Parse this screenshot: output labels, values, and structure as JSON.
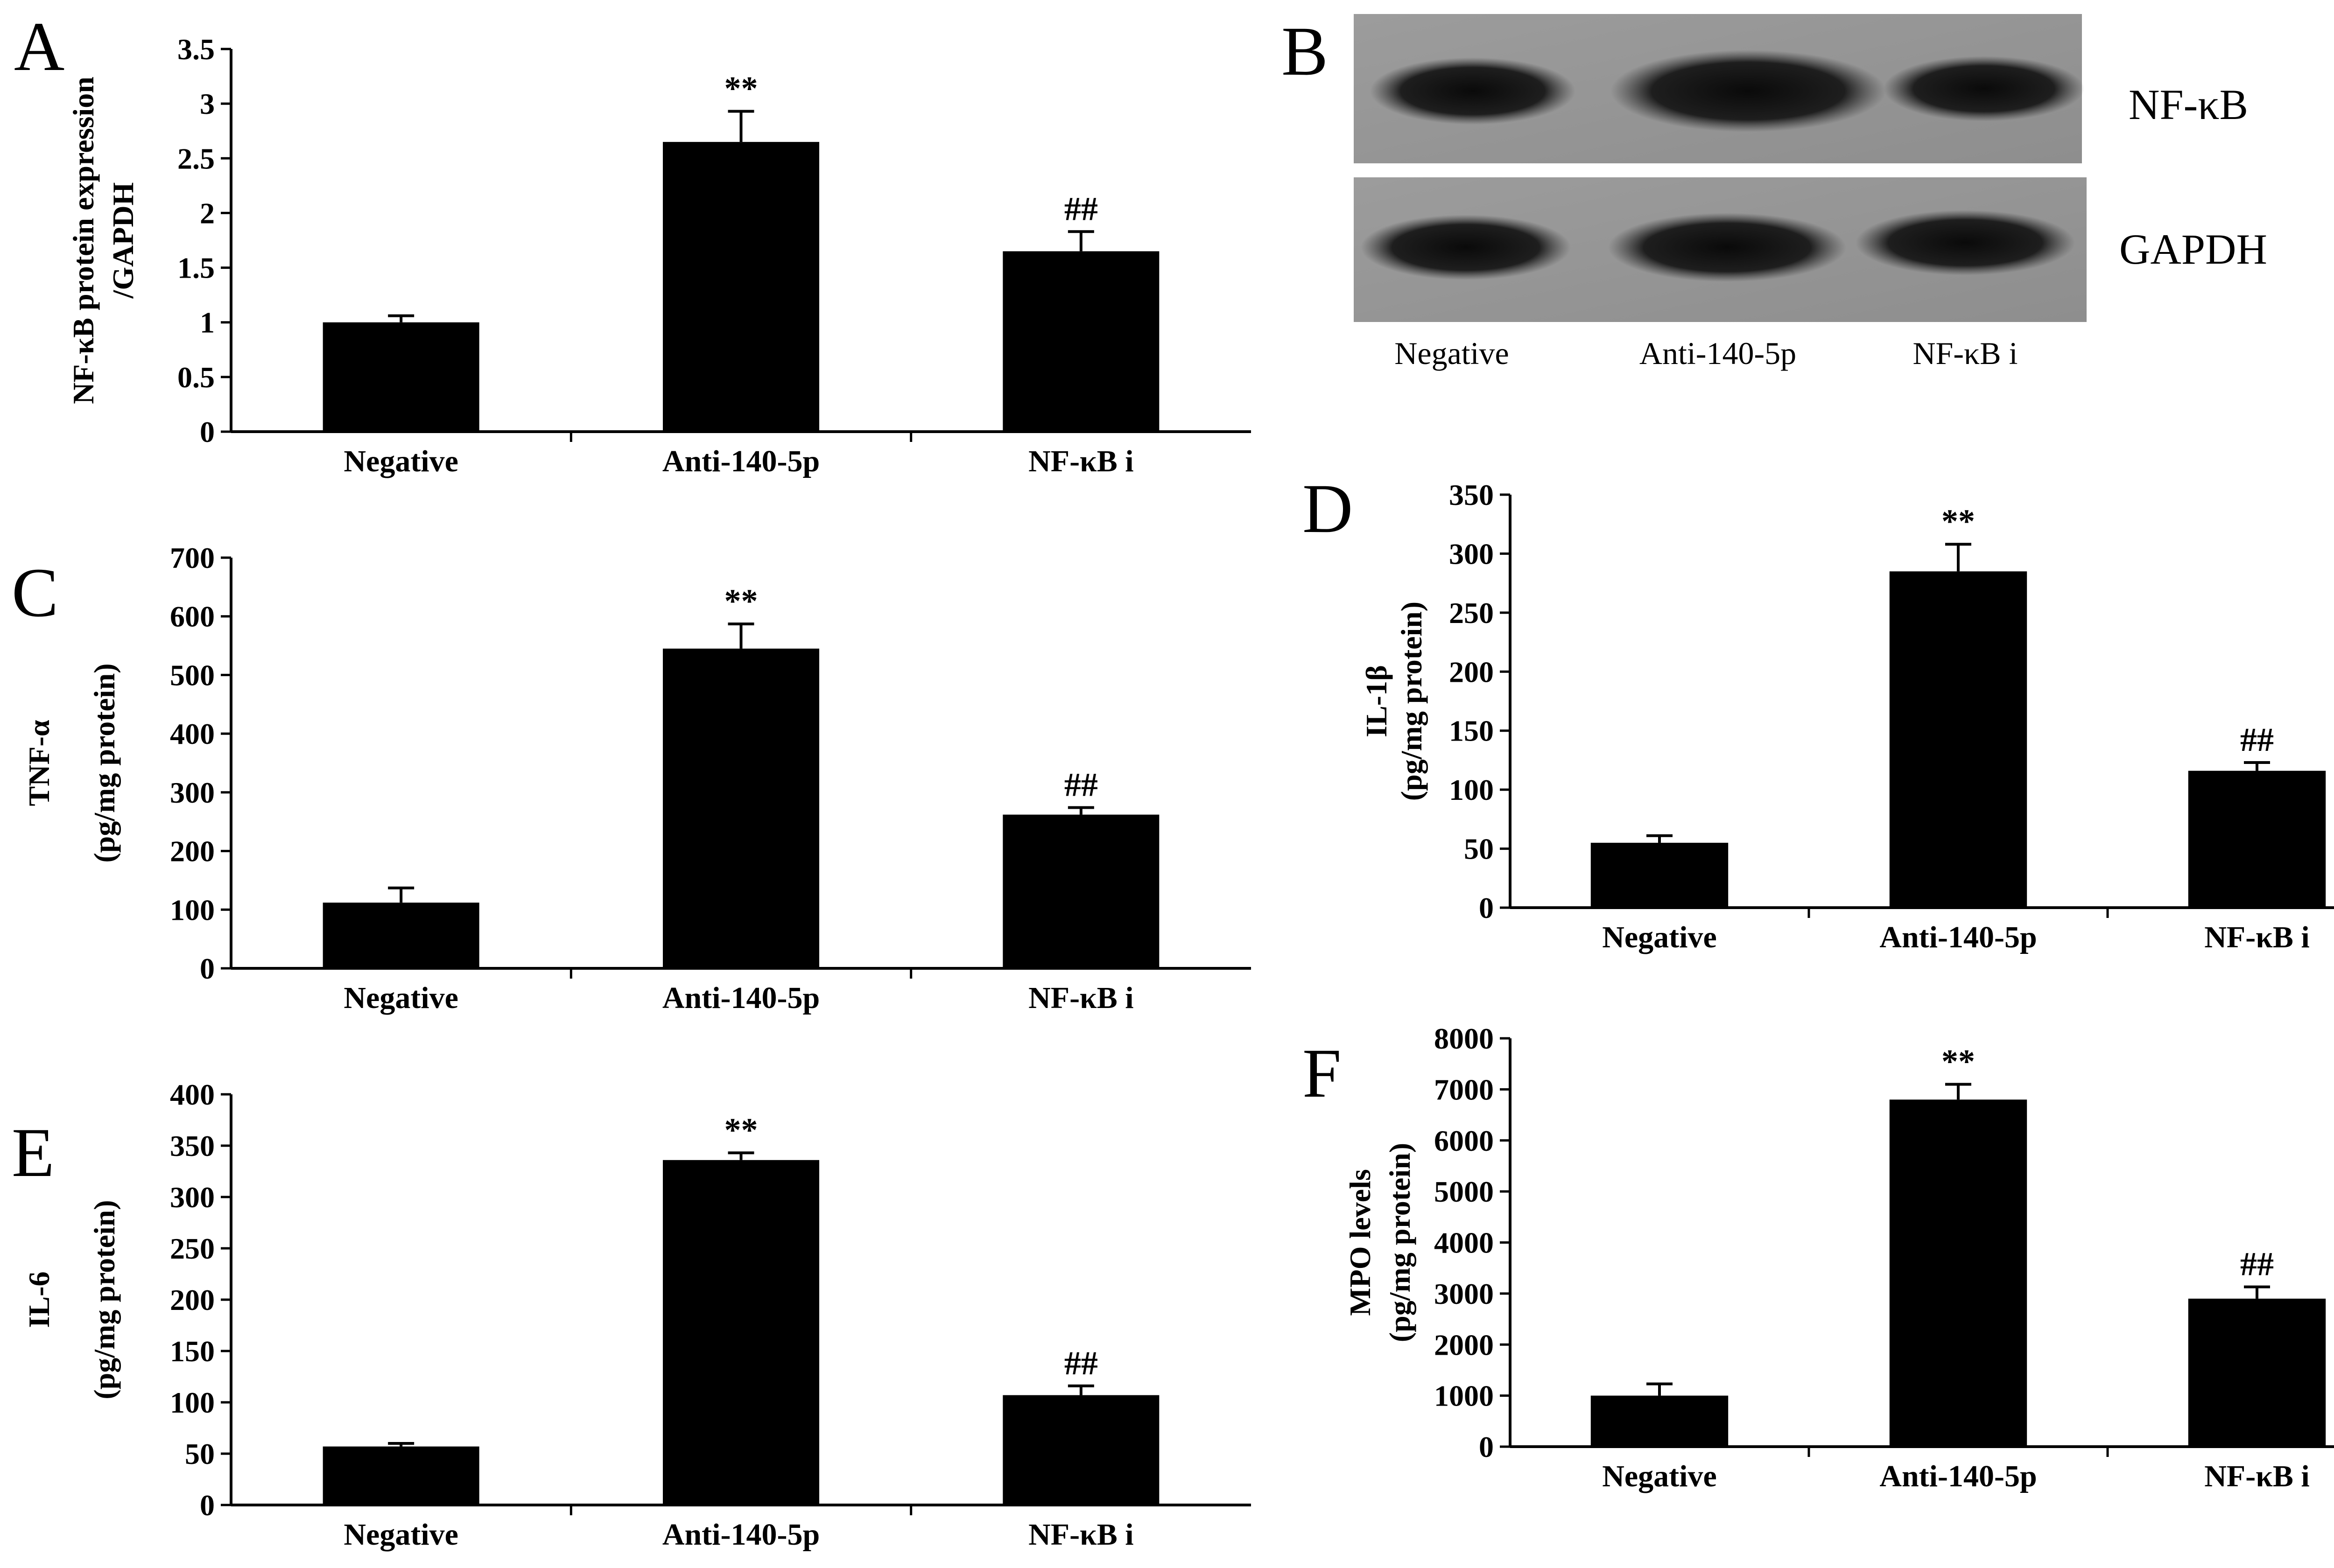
{
  "panels": [
    {
      "letter": "A"
    },
    {
      "letter": "B"
    },
    {
      "letter": "C"
    },
    {
      "letter": "D"
    },
    {
      "letter": "E"
    },
    {
      "letter": "F"
    }
  ],
  "blot": {
    "panel_letter": "B",
    "rows": [
      "NF-κB",
      "GAPDH"
    ],
    "lanes": [
      "Negative",
      "Anti-140-5p",
      "NF-κB  i"
    ]
  },
  "chart_data": [
    {
      "panel": "A",
      "type": "bar",
      "categories": [
        "Negative",
        "Anti-140-5p",
        "NF-κB  i"
      ],
      "values": [
        1.0,
        2.65,
        1.65
      ],
      "errors": [
        0.06,
        0.28,
        0.18
      ],
      "annotations": [
        "",
        "**",
        "##"
      ],
      "ylabel": [
        "NF-κB protein expression",
        "/GAPDH"
      ],
      "ylim": [
        0,
        3.5
      ],
      "yticks": [
        0,
        0.5,
        1,
        1.5,
        2,
        2.5,
        3,
        3.5
      ],
      "ytick_labels": [
        "0",
        "0.5",
        "1",
        "1.5",
        "2",
        "2.5",
        "3",
        "3.5"
      ]
    },
    {
      "panel": "C",
      "type": "bar",
      "categories": [
        "Negative",
        "Anti-140-5p",
        "NF-κB  i"
      ],
      "values": [
        112,
        545,
        262
      ],
      "errors": [
        25,
        42,
        12
      ],
      "annotations": [
        "",
        "**",
        "##"
      ],
      "ylabel": [
        "TNF-α",
        "(pg/mg protein)"
      ],
      "ylim": [
        0,
        700
      ],
      "yticks": [
        0,
        100,
        200,
        300,
        400,
        500,
        600,
        700
      ],
      "ytick_labels": [
        "0",
        "100",
        "200",
        "300",
        "400",
        "500",
        "600",
        "700"
      ]
    },
    {
      "panel": "D",
      "type": "bar",
      "categories": [
        "Negative",
        "Anti-140-5p",
        "NF-κB  i"
      ],
      "values": [
        55,
        285,
        116
      ],
      "errors": [
        6,
        23,
        7
      ],
      "annotations": [
        "",
        "**",
        "##"
      ],
      "ylabel": [
        "IL-1β",
        "(pg/mg protein)"
      ],
      "ylim": [
        0,
        350
      ],
      "yticks": [
        0,
        50,
        100,
        150,
        200,
        250,
        300,
        350
      ],
      "ytick_labels": [
        "0",
        "50",
        "100",
        "150",
        "200",
        "250",
        "300",
        "350"
      ]
    },
    {
      "panel": "E",
      "type": "bar",
      "categories": [
        "Negative",
        "Anti-140-5p",
        "NF-κB  i"
      ],
      "values": [
        57,
        336,
        107
      ],
      "errors": [
        3,
        7,
        9
      ],
      "annotations": [
        "",
        "**",
        "##"
      ],
      "ylabel": [
        "IL-6",
        "(pg/mg protein)"
      ],
      "ylim": [
        0,
        400
      ],
      "yticks": [
        0,
        50,
        100,
        150,
        200,
        250,
        300,
        350,
        400
      ],
      "ytick_labels": [
        "0",
        "50",
        "100",
        "150",
        "200",
        "250",
        "300",
        "350",
        "400"
      ]
    },
    {
      "panel": "F",
      "type": "bar",
      "categories": [
        "Negative",
        "Anti-140-5p",
        "NF-κB i"
      ],
      "values": [
        1000,
        6800,
        2900
      ],
      "errors": [
        230,
        300,
        230
      ],
      "annotations": [
        "",
        "**",
        "##"
      ],
      "ylabel": [
        "MPO levels",
        "(pg/mg protein)"
      ],
      "ylim": [
        0,
        8000
      ],
      "yticks": [
        0,
        1000,
        2000,
        3000,
        4000,
        5000,
        6000,
        7000,
        8000
      ],
      "ytick_labels": [
        "0",
        "1000",
        "2000",
        "3000",
        "4000",
        "5000",
        "6000",
        "7000",
        "8000"
      ]
    }
  ]
}
